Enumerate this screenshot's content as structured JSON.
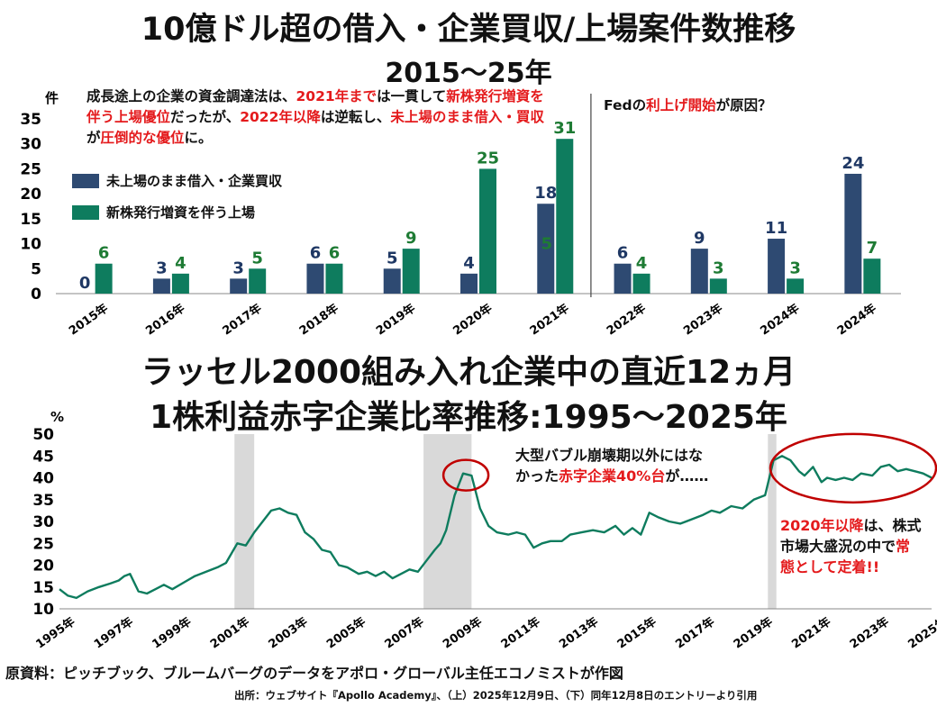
{
  "top": {
    "title": "10億ドル超の借入・企業買収/上場案件数推移",
    "subtitle": "2015～25年",
    "note": [
      {
        "t": "成長途上の企業の資金調達法は、",
        "r": false
      },
      {
        "t": "2021年まで",
        "r": true
      },
      {
        "t": "は一貫して",
        "r": false
      },
      {
        "t": "新株発行増資を伴う上場優位",
        "r": true
      },
      {
        "t": "だったが、",
        "r": false
      },
      {
        "t": "2022年以降",
        "r": true
      },
      {
        "t": "は逆転し、",
        "r": false
      },
      {
        "t": "未上場のまま借入・買収",
        "r": true
      },
      {
        "t": "が",
        "r": false
      },
      {
        "t": "圧倒的な優位",
        "r": true
      },
      {
        "t": "に。",
        "r": false
      }
    ],
    "fed_note": [
      {
        "t": "Fedの",
        "r": false
      },
      {
        "t": "利上げ開始",
        "r": true
      },
      {
        "t": "が原因？",
        "r": false
      }
    ]
  },
  "chart_data": [
    {
      "type": "bar",
      "ylabel": "件",
      "ylim": [
        0,
        35
      ],
      "yticks": [
        0,
        5,
        10,
        15,
        20,
        25,
        30,
        35
      ],
      "categories": [
        "2015年",
        "2016年",
        "2017年",
        "2018年",
        "2019年",
        "2020年",
        "2021年",
        "2022年",
        "2023年",
        "2024年",
        "2024年"
      ],
      "series": [
        {
          "name": "未上場のまま借入・企業買収",
          "color": "#2e4a72",
          "label_color": "#1f3864",
          "values": [
            0,
            3,
            3,
            6,
            5,
            4,
            18,
            6,
            9,
            11,
            24
          ]
        },
        {
          "name": "新株発行増資を伴う上場",
          "color": "#0e7c5e",
          "label_color": "#1e7b34",
          "values": [
            6,
            4,
            5,
            6,
            9,
            25,
            31,
            4,
            3,
            3,
            7
          ]
        }
      ],
      "extra_labels": [
        {
          "category_index": 6,
          "series_index": 1,
          "text": "5",
          "level": 10
        }
      ],
      "legend_position": "left"
    },
    {
      "type": "line",
      "title": "ラッセル2000組み入れ企業中の直近12ヵ月",
      "subtitle": "1株利益赤字企業比率推移:1995～2025年",
      "ylabel": "%",
      "ylim": [
        10,
        50
      ],
      "yticks": [
        10,
        15,
        20,
        25,
        30,
        35,
        40,
        45,
        50
      ],
      "xlim": [
        1995.0,
        2025.9
      ],
      "xticks": [
        "1995年",
        "1997年",
        "1999年",
        "2001年",
        "2003年",
        "2005年",
        "2007年",
        "2009年",
        "2011年",
        "2013年",
        "2015年",
        "2017年",
        "2019年",
        "2021年",
        "2023年",
        "2025年"
      ],
      "color": "#0e7c5e",
      "shaded_periods": [
        [
          2001.2,
          2001.9
        ],
        [
          2007.9,
          2009.6
        ],
        [
          2020.1,
          2020.4
        ]
      ],
      "x": [
        1995.0,
        1995.3,
        1995.6,
        1996.0,
        1996.4,
        1996.8,
        1997.1,
        1997.3,
        1997.5,
        1997.8,
        1998.1,
        1998.4,
        1998.7,
        1999.0,
        1999.4,
        1999.8,
        2000.2,
        2000.6,
        2000.9,
        2001.3,
        2001.6,
        2001.9,
        2002.2,
        2002.5,
        2002.8,
        2003.1,
        2003.4,
        2003.7,
        2004.0,
        2004.3,
        2004.6,
        2004.9,
        2005.2,
        2005.6,
        2005.9,
        2006.2,
        2006.5,
        2006.8,
        2007.1,
        2007.4,
        2007.7,
        2008.0,
        2008.3,
        2008.5,
        2008.7,
        2009.0,
        2009.3,
        2009.6,
        2009.9,
        2010.2,
        2010.5,
        2010.9,
        2011.2,
        2011.5,
        2011.8,
        2012.1,
        2012.4,
        2012.8,
        2013.1,
        2013.5,
        2013.9,
        2014.3,
        2014.7,
        2015.0,
        2015.3,
        2015.6,
        2015.9,
        2016.2,
        2016.6,
        2017.0,
        2017.4,
        2017.8,
        2018.1,
        2018.4,
        2018.8,
        2019.2,
        2019.6,
        2020.0,
        2020.3,
        2020.6,
        2020.9,
        2021.2,
        2021.4,
        2021.7,
        2022.0,
        2022.2,
        2022.5,
        2022.8,
        2023.1,
        2023.4,
        2023.8,
        2024.1,
        2024.4,
        2024.7,
        2025.0,
        2025.3,
        2025.6,
        2025.9
      ],
      "values": [
        14.5,
        13.0,
        12.5,
        14.0,
        15.0,
        15.8,
        16.5,
        17.5,
        18.0,
        14.0,
        13.5,
        14.5,
        15.5,
        14.5,
        16.0,
        17.5,
        18.5,
        19.5,
        20.5,
        25.0,
        24.5,
        27.5,
        30.0,
        32.5,
        33.0,
        32.0,
        31.5,
        27.5,
        26.0,
        23.5,
        23.0,
        20.0,
        19.5,
        18.0,
        18.5,
        17.5,
        18.5,
        17.0,
        18.0,
        19.0,
        18.5,
        21.0,
        23.5,
        25.0,
        28.0,
        36.0,
        41.0,
        40.5,
        33.0,
        29.0,
        27.5,
        27.0,
        27.5,
        27.0,
        24.0,
        25.0,
        25.5,
        25.5,
        27.0,
        27.5,
        28.0,
        27.5,
        29.0,
        27.0,
        28.5,
        27.0,
        32.0,
        31.0,
        30.0,
        29.5,
        30.5,
        31.5,
        32.5,
        32.0,
        33.5,
        33.0,
        35.0,
        36.0,
        44.0,
        45.0,
        44.0,
        41.5,
        40.5,
        42.5,
        39.0,
        40.0,
        39.5,
        40.0,
        39.5,
        41.0,
        40.5,
        42.5,
        43.0,
        41.5,
        42.0,
        41.5,
        41.0,
        40.0
      ],
      "annotations": {
        "bubble": [
          {
            "t": "大型バブル崩壊期以外にはなかった",
            "r": false
          },
          {
            "t": "赤字企業40%台",
            "r": true
          },
          {
            "t": "が……",
            "r": false
          }
        ],
        "since2020": [
          {
            "t": "2020年以降",
            "r": true
          },
          {
            "t": "は、株式市場大盛況の中で",
            "r": false
          },
          {
            "t": "常態として定着!!",
            "r": true
          }
        ]
      }
    }
  ],
  "footer": {
    "source_main": "原資料：ピッチブック、ブルームバーグのデータをアポロ・グローバル主任エコノミストが作図",
    "source_sub": "出所：ウェブサイト『Apollo Academy』、（上）2025年12月9日、（下）同年12月8日のエントリーより引用"
  },
  "colors": {
    "red": "#e41a1c",
    "navy": "#2e4a72",
    "green": "#0e7c5e",
    "shade": "#d9d9d9"
  }
}
